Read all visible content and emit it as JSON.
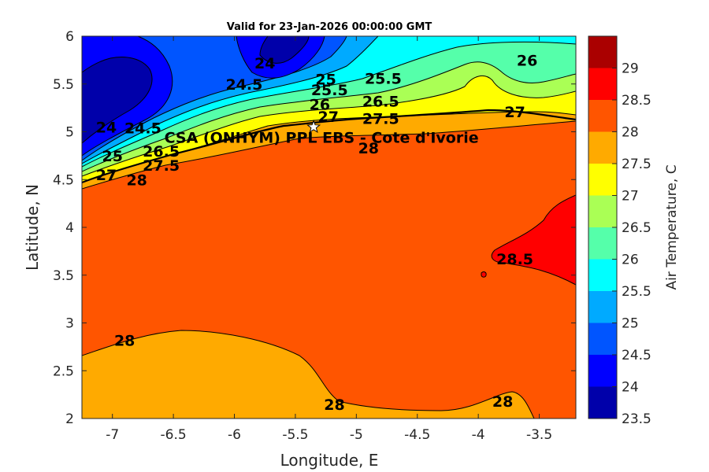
{
  "chart_data": {
    "type": "heatmap",
    "title": "Valid for 23-Jan-2026 00:00:00 GMT",
    "xlabel": "Longitude, E",
    "ylabel": "Latitude, N",
    "xlim": [
      -7.25,
      -3.2
    ],
    "ylim": [
      2,
      6
    ],
    "xticks": [
      "-7",
      "-6.5",
      "-6",
      "-5.5",
      "-5",
      "-4.5",
      "-4",
      "-3.5"
    ],
    "yticks": [
      "2",
      "2.5",
      "3",
      "3.5",
      "4",
      "4.5",
      "5",
      "5.5",
      "6"
    ],
    "colorbar": {
      "label": "Air Temperature, C",
      "ticks": [
        "23.5",
        "24",
        "24.5",
        "25",
        "25.5",
        "26",
        "26.5",
        "27",
        "27.5",
        "28",
        "28.5",
        "29"
      ],
      "levels": [
        {
          "range": [
            23.5,
            24.0
          ],
          "color": "#0000aa"
        },
        {
          "range": [
            24.0,
            24.5
          ],
          "color": "#0000ff"
        },
        {
          "range": [
            24.5,
            25.0
          ],
          "color": "#0055ff"
        },
        {
          "range": [
            25.0,
            25.5
          ],
          "color": "#00aaff"
        },
        {
          "range": [
            25.5,
            26.0
          ],
          "color": "#00ffff"
        },
        {
          "range": [
            26.0,
            26.5
          ],
          "color": "#55ffaa"
        },
        {
          "range": [
            26.5,
            27.0
          ],
          "color": "#aaff55"
        },
        {
          "range": [
            27.0,
            27.5
          ],
          "color": "#ffff00"
        },
        {
          "range": [
            27.5,
            28.0
          ],
          "color": "#ffaa00"
        },
        {
          "range": [
            28.0,
            28.5
          ],
          "color": "#ff5500"
        },
        {
          "range": [
            28.5,
            29.0
          ],
          "color": "#ff0000"
        },
        {
          "range": [
            29.0,
            29.5
          ],
          "color": "#aa0000"
        }
      ]
    },
    "station": {
      "name": "CSA (ONHYM) PPL EBS - Cote d'Ivorie",
      "lon": -5.35,
      "lat": 5.05
    },
    "contour_labels": [
      {
        "text": "24",
        "lon": -5.75,
        "lat": 5.72
      },
      {
        "text": "24.5",
        "lon": -5.92,
        "lat": 5.5
      },
      {
        "text": "25",
        "lon": -5.25,
        "lat": 5.55
      },
      {
        "text": "25.5",
        "lon": -5.22,
        "lat": 5.44
      },
      {
        "text": "25.5",
        "lon": -4.78,
        "lat": 5.56
      },
      {
        "text": "26",
        "lon": -5.3,
        "lat": 5.29
      },
      {
        "text": "26.5",
        "lon": -4.8,
        "lat": 5.32
      },
      {
        "text": "27",
        "lon": -5.23,
        "lat": 5.16
      },
      {
        "text": "27.5",
        "lon": -4.8,
        "lat": 5.14
      },
      {
        "text": "26",
        "lon": -3.6,
        "lat": 5.75
      },
      {
        "text": "27",
        "lon": -3.7,
        "lat": 5.21
      },
      {
        "text": "24",
        "lon": -7.05,
        "lat": 5.05
      },
      {
        "text": "24.5",
        "lon": -6.75,
        "lat": 5.04
      },
      {
        "text": "25",
        "lon": -7.0,
        "lat": 4.75
      },
      {
        "text": "26.5",
        "lon": -6.6,
        "lat": 4.8
      },
      {
        "text": "27",
        "lon": -7.05,
        "lat": 4.55
      },
      {
        "text": "27.5",
        "lon": -6.6,
        "lat": 4.65
      },
      {
        "text": "28",
        "lon": -6.8,
        "lat": 4.5
      },
      {
        "text": "28",
        "lon": -4.9,
        "lat": 4.83
      },
      {
        "text": "28.5",
        "lon": -3.7,
        "lat": 3.67
      },
      {
        "text": "28",
        "lon": -6.9,
        "lat": 2.82
      },
      {
        "text": "28",
        "lon": -5.18,
        "lat": 2.15
      },
      {
        "text": "28",
        "lon": -3.8,
        "lat": 2.18
      }
    ]
  }
}
